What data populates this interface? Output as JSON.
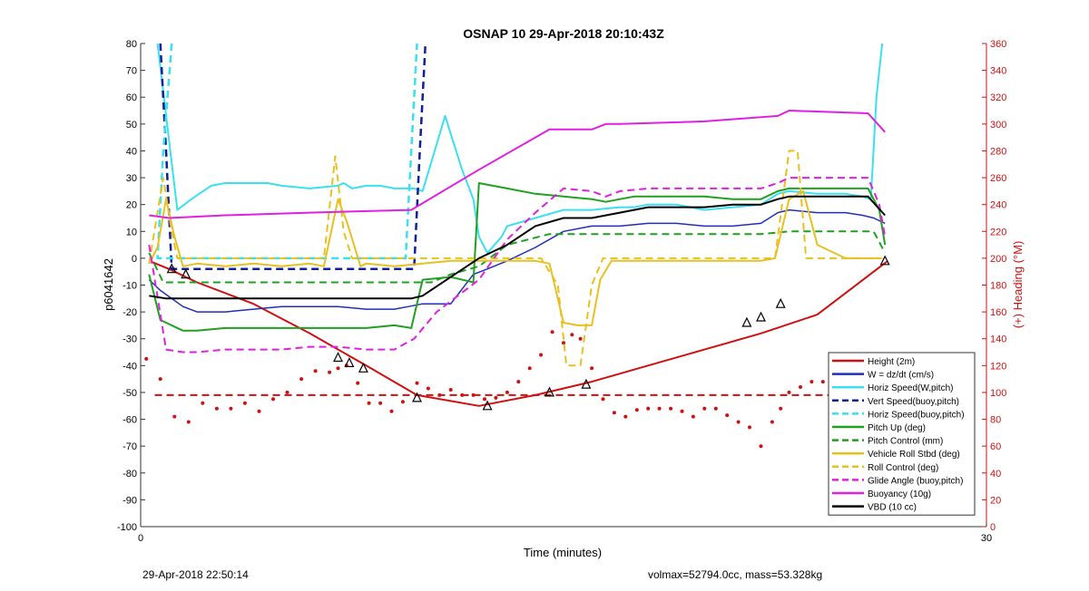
{
  "chart_data": {
    "type": "line",
    "title": "OSNAP 10 29-Apr-2018 20:10:43Z",
    "xlabel": "Time (minutes)",
    "ylabel": "p6041642",
    "y2label": "(+) Heading (°M)",
    "xlim": [
      0,
      30
    ],
    "ylim": [
      -100,
      80
    ],
    "y2lim": [
      0,
      360
    ],
    "xticks": [
      "0",
      "30"
    ],
    "yticks": [
      "80",
      "70",
      "60",
      "50",
      "40",
      "30",
      "20",
      "10",
      "0",
      "-10",
      "-20",
      "-30",
      "-40",
      "-50",
      "-60",
      "-70",
      "-80",
      "-90",
      "-100"
    ],
    "y2ticks": [
      "360",
      "340",
      "320",
      "300",
      "280",
      "260",
      "240",
      "220",
      "200",
      "180",
      "160",
      "140",
      "120",
      "100",
      "80",
      "60",
      "40",
      "20",
      "0"
    ],
    "grid": false,
    "legend_position": "bottom-right",
    "colors": {
      "red": "#d01010",
      "blue": "#1f2fb8",
      "cyan": "#38e0f0",
      "darkblue": "#10209a",
      "green": "#20a020",
      "yellow": "#e8c020",
      "magenta": "#e020e0",
      "black": "#000000"
    },
    "legend": [
      {
        "name": "Height (2m)",
        "color": "#d01010",
        "dash": false
      },
      {
        "name": "W = dz/dt (cm/s)",
        "color": "#1f2fb8",
        "dash": false
      },
      {
        "name": "Horiz Speed(W,pitch)",
        "color": "#38e0f0",
        "dash": false
      },
      {
        "name": "Vert Speed(buoy,pitch)",
        "color": "#10209a",
        "dash": true
      },
      {
        "name": "Horiz Speed(buoy,pitch)",
        "color": "#38e0f0",
        "dash": true
      },
      {
        "name": "Pitch Up (deg)",
        "color": "#20a020",
        "dash": false
      },
      {
        "name": "Pitch Control (mm)",
        "color": "#20a020",
        "dash": true
      },
      {
        "name": "Vehicle Roll Stbd (deg)",
        "color": "#e8c020",
        "dash": false
      },
      {
        "name": "Roll Control (deg)",
        "color": "#e8c020",
        "dash": true
      },
      {
        "name": "Glide Angle (buoy,pitch)",
        "color": "#e020e0",
        "dash": true
      },
      {
        "name": "Buoyancy (10g)",
        "color": "#e020e0",
        "dash": false
      },
      {
        "name": "VBD (10 cc)",
        "color": "#000000",
        "dash": false
      }
    ],
    "series": [
      {
        "name": "Height (2m)",
        "color": "#d01010",
        "width": 2,
        "dash": false,
        "x": [
          0.3,
          1,
          2,
          4,
          6,
          8,
          9.8,
          12,
          14,
          16,
          18,
          20,
          22,
          24,
          26.5
        ],
        "y": [
          -1,
          -4,
          -9,
          -17,
          -28,
          -40,
          -51,
          -55,
          -51,
          -46,
          -40,
          -34,
          -28,
          -21,
          -1
        ]
      },
      {
        "name": "Heading setpoint",
        "color": "#d01010",
        "width": 2,
        "dash": true,
        "x": [
          0.5,
          25.7
        ],
        "y": [
          -51,
          -51
        ]
      },
      {
        "name": "W = dz/dt (cm/s)",
        "color": "#1f2fb8",
        "width": 1.5,
        "dash": false,
        "x": [
          0.3,
          0.7,
          1.5,
          2,
          3,
          4,
          5,
          6,
          7,
          8,
          9,
          9.5,
          10,
          11,
          11.8,
          12.3,
          13,
          14,
          15,
          16,
          17,
          18,
          19,
          20,
          21,
          22,
          22.6,
          23,
          24,
          25,
          25.6,
          26,
          26.4
        ],
        "y": [
          -8,
          -12,
          -18,
          -20,
          -20,
          -19,
          -18,
          -18,
          -18,
          -19,
          -19,
          -18,
          -17,
          -17,
          -6,
          -4,
          -1,
          4,
          10,
          12,
          12,
          13,
          13,
          12,
          12,
          13,
          17,
          18,
          17,
          17,
          16,
          15,
          13
        ]
      },
      {
        "name": "Horiz Speed(W,pitch)",
        "color": "#38e0f0",
        "width": 2,
        "dash": false,
        "x": [
          0.6,
          1.3,
          1.8,
          2.5,
          3,
          4,
          4.5,
          5,
          6,
          7,
          7.2,
          7.5,
          8,
          8.5,
          9,
          9.7,
          10,
          10.8,
          11.1,
          11.4,
          11.8,
          12,
          12.3,
          12.8,
          13,
          14,
          15,
          16,
          17,
          17.5,
          18,
          19,
          20,
          21,
          22,
          22.6,
          23,
          24,
          25,
          25.6,
          25.9,
          26.1,
          26.3
        ],
        "y": [
          80,
          18,
          22,
          27,
          28,
          28,
          28,
          27,
          26,
          27,
          28,
          26,
          27,
          27,
          26,
          26,
          25,
          53,
          43,
          33,
          22,
          8,
          2,
          8,
          12,
          15,
          18,
          18,
          19,
          19,
          20,
          20,
          18,
          19,
          20,
          24,
          25,
          24,
          24,
          23,
          22,
          60,
          80
        ]
      },
      {
        "name": "Vert Speed(buoy,pitch)",
        "color": "#10209a",
        "width": 2.5,
        "dash": true,
        "x": [
          0.7,
          0.9,
          1.1,
          9.7,
          9.9,
          10.1
        ],
        "y": [
          80,
          40,
          -4,
          -4,
          40,
          80
        ]
      },
      {
        "name": "Horiz Speed(buoy,pitch)",
        "color": "#38e0f0",
        "width": 2.5,
        "dash": true,
        "x": [
          1.1,
          0.8,
          0.6,
          0.6,
          1.0,
          9.4,
          9.6,
          9.8
        ],
        "y": [
          80,
          40,
          0,
          0,
          0,
          0,
          40,
          80
        ]
      },
      {
        "name": "Pitch Up (deg)",
        "color": "#20a020",
        "width": 2,
        "dash": false,
        "x": [
          0.3,
          0.7,
          1.5,
          2,
          3,
          4,
          5,
          6,
          7,
          8,
          9,
          9.6,
          10,
          11,
          11.8,
          12,
          13,
          14,
          15,
          16,
          16.5,
          17,
          17.5,
          18,
          19,
          20,
          21,
          22,
          22.6,
          23,
          24,
          25,
          25.8,
          26.2,
          26.4
        ],
        "y": [
          -6,
          -23,
          -27,
          -27,
          -26,
          -26,
          -26,
          -26,
          -26,
          -26,
          -25,
          -26,
          -8,
          -7,
          -9,
          28,
          26,
          24,
          23,
          22,
          21,
          22,
          23,
          23,
          23,
          23,
          22,
          22,
          25,
          26,
          26,
          26,
          26,
          18,
          5
        ]
      },
      {
        "name": "Pitch Control (mm)",
        "color": "#20a020",
        "width": 2,
        "dash": true,
        "x": [
          0.3,
          0.8,
          3,
          6,
          8,
          9.6,
          10.3,
          11,
          12,
          13,
          14.5,
          15,
          17,
          20,
          22,
          23,
          24,
          25.5,
          26,
          26.4
        ],
        "y": [
          2,
          -9,
          -9,
          -9,
          -9,
          -9,
          -9,
          -6,
          -3,
          5,
          9,
          9,
          9,
          9,
          9,
          10,
          10,
          10,
          10,
          2
        ]
      },
      {
        "name": "Vehicle Roll Stbd (deg)",
        "color": "#e8c020",
        "width": 2,
        "dash": false,
        "x": [
          0.3,
          0.6,
          0.9,
          1.2,
          1.5,
          2,
          3,
          4,
          5,
          6,
          6.5,
          7,
          7.3,
          7.8,
          8,
          9,
          10,
          11,
          12,
          13,
          14,
          14.5,
          15,
          15.5,
          16,
          16.3,
          16.7,
          17,
          18,
          19,
          20,
          21,
          22,
          22.5,
          23,
          23.5,
          24,
          25,
          25.8,
          26.3
        ],
        "y": [
          -2,
          4,
          22,
          8,
          -3,
          -2,
          -3,
          -2,
          -3,
          -2,
          -3,
          22,
          14,
          -3,
          -2,
          -3,
          -2,
          -1,
          -1,
          -1,
          -1,
          -2,
          -24,
          -25,
          -25,
          -8,
          -1,
          -1,
          -1,
          -1,
          -1,
          -1,
          -1,
          0,
          22,
          25,
          5,
          0,
          0,
          0
        ]
      },
      {
        "name": "Roll Control (deg)",
        "color": "#e8c020",
        "width": 2,
        "dash": true,
        "x": [
          0.3,
          0.8,
          1.1,
          1.3,
          1.5,
          1.8,
          6.5,
          6.9,
          7.2,
          7.5,
          7.8,
          14.2,
          14.8,
          15.1,
          15.6,
          16.0,
          16.4,
          16.8,
          17.0,
          22.5,
          23.0,
          23.3,
          23.6,
          24.0,
          25.8,
          26.2
        ],
        "y": [
          -2,
          30,
          10,
          0,
          0,
          0,
          0,
          38,
          10,
          0,
          0,
          0,
          -10,
          -40,
          -40,
          -10,
          0,
          0,
          0,
          0,
          40,
          40,
          0,
          0,
          0,
          0
        ]
      },
      {
        "name": "Glide Angle (buoy,pitch)",
        "color": "#e020e0",
        "width": 2,
        "dash": true,
        "x": [
          0.3,
          0.9,
          1.5,
          2,
          3,
          4,
          5,
          6,
          7,
          8,
          9,
          9.7,
          10.5,
          11,
          12,
          13,
          14,
          15,
          16,
          16.5,
          17,
          18,
          19,
          20,
          21,
          22,
          22.6,
          23,
          24,
          25,
          25.8,
          26.2,
          26.4
        ],
        "y": [
          5,
          -34,
          -35,
          -35,
          -34,
          -34,
          -34,
          -33,
          -33,
          -34,
          -34,
          -30,
          -20,
          -16,
          -8,
          7,
          17,
          26,
          25,
          23,
          25,
          26,
          26,
          26,
          26,
          26,
          28,
          30,
          30,
          30,
          30,
          20,
          8
        ]
      },
      {
        "name": "Buoyancy (10g)",
        "color": "#e020e0",
        "width": 2,
        "dash": false,
        "x": [
          0.3,
          1,
          3,
          6,
          9.6,
          12,
          14.5,
          15,
          16,
          16.5,
          17,
          20,
          22.6,
          23,
          25.8,
          26.4
        ],
        "y": [
          16,
          15,
          16,
          17,
          18,
          33,
          48,
          48,
          48,
          50,
          50,
          51,
          53,
          55,
          54,
          47
        ]
      },
      {
        "name": "VBD (10 cc)",
        "color": "#000000",
        "width": 2,
        "dash": false,
        "x": [
          0.3,
          0.9,
          1.5,
          3,
          6,
          9.6,
          10,
          11,
          12,
          13,
          14,
          15,
          16,
          17,
          18,
          19,
          20,
          21,
          22,
          22.6,
          23,
          24,
          25,
          25.8,
          26.4
        ],
        "y": [
          -14,
          -15,
          -15,
          -15,
          -15,
          -15,
          -14,
          -7,
          0,
          5,
          12,
          15,
          15,
          17,
          19,
          19,
          19,
          20,
          20,
          22,
          23,
          23,
          23,
          23,
          16
        ]
      }
    ],
    "scatter": {
      "name": "Heading (°M)",
      "color": "#d01010",
      "axis": "right",
      "x": [
        0.2,
        0.7,
        1.2,
        1.7,
        2.2,
        2.7,
        3.2,
        3.7,
        4.2,
        4.7,
        5.2,
        5.7,
        6.2,
        6.7,
        7.0,
        7.3,
        7.7,
        8.1,
        8.5,
        8.9,
        9.3,
        9.8,
        10.2,
        10.6,
        11.0,
        11.4,
        11.8,
        12.2,
        12.6,
        13.0,
        13.4,
        13.8,
        14.2,
        14.6,
        15.0,
        15.3,
        15.6,
        16.0,
        16.4,
        16.8,
        17.2,
        17.6,
        18.0,
        18.4,
        18.8,
        19.2,
        19.6,
        20.0,
        20.4,
        20.8,
        21.2,
        21.6,
        22.0,
        22.4,
        22.7,
        23.0,
        23.4,
        23.8,
        24.2,
        24.6,
        25.0,
        25.4,
        25.8
      ],
      "y": [
        125,
        110,
        82,
        78,
        92,
        88,
        88,
        92,
        86,
        95,
        100,
        110,
        116,
        115,
        118,
        120,
        107,
        92,
        92,
        86,
        93,
        107,
        103,
        98,
        102,
        98,
        98,
        95,
        96,
        100,
        108,
        118,
        128,
        145,
        137,
        143,
        140,
        118,
        95,
        85,
        82,
        87,
        88,
        88,
        88,
        86,
        82,
        88,
        88,
        83,
        78,
        74,
        60,
        78,
        88,
        100,
        104,
        108,
        108,
        101,
        111,
        104,
        93
      ]
    },
    "markers": {
      "x": [
        1.1,
        1.6,
        7.0,
        7.4,
        7.9,
        9.8,
        12.3,
        14.5,
        15.8,
        21.5,
        22.0,
        22.7,
        26.4
      ],
      "y": [
        -4,
        -6,
        -37,
        -39,
        -41,
        -52,
        -55,
        -50,
        -47,
        -24,
        -22,
        -17,
        -1
      ]
    }
  },
  "footer": {
    "left": "29-Apr-2018 22:50:14",
    "right": "volmax=52794.0cc, mass=53.328kg"
  }
}
